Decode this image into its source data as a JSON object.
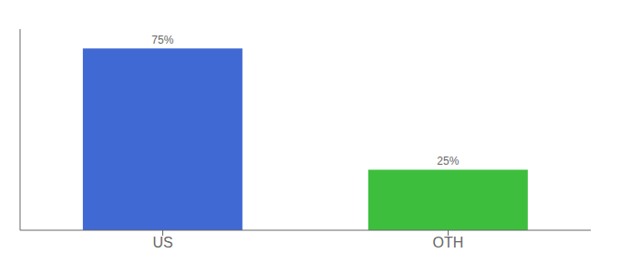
{
  "chart_data": {
    "type": "bar",
    "categories": [
      "US",
      "OTH"
    ],
    "values": [
      75,
      25
    ],
    "value_labels": [
      "75%",
      "25%"
    ],
    "colors": [
      "#4169d4",
      "#3dbf3d"
    ],
    "ylim": [
      0,
      83
    ],
    "tick_labels": "x"
  }
}
